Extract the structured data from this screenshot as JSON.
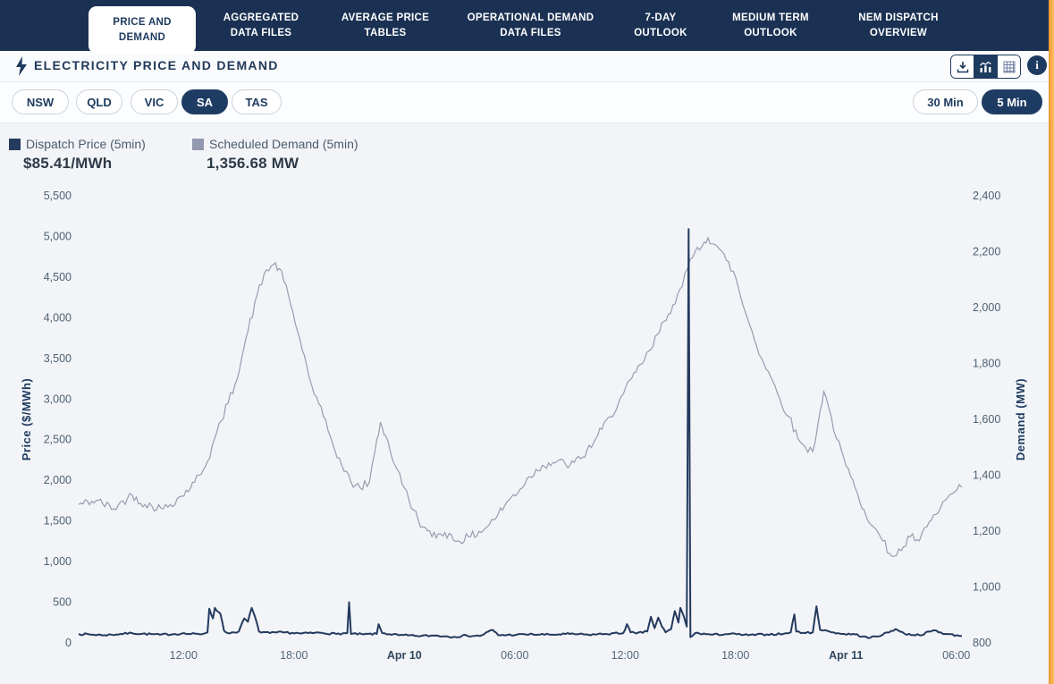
{
  "tabs": [
    {
      "line1": "PRICE AND",
      "line2": "DEMAND",
      "active": true
    },
    {
      "line1": "AGGREGATED",
      "line2": "DATA FILES",
      "active": false
    },
    {
      "line1": "AVERAGE PRICE",
      "line2": "TABLES",
      "active": false
    },
    {
      "line1": "OPERATIONAL DEMAND",
      "line2": "DATA FILES",
      "active": false
    },
    {
      "line1": "7-DAY",
      "line2": "OUTLOOK",
      "active": false
    },
    {
      "line1": "MEDIUM TERM",
      "line2": "OUTLOOK",
      "active": false
    },
    {
      "line1": "NEM DISPATCH",
      "line2": "OVERVIEW",
      "active": false
    }
  ],
  "header": {
    "title": "ELECTRICITY PRICE AND DEMAND",
    "toolbar": [
      "download",
      "chart",
      "table"
    ],
    "toolbar_selected": "chart",
    "info_label": "i"
  },
  "regions": [
    {
      "label": "NSW",
      "selected": false
    },
    {
      "label": "QLD",
      "selected": false
    },
    {
      "label": "VIC",
      "selected": false
    },
    {
      "label": "SA",
      "selected": true
    },
    {
      "label": "TAS",
      "selected": false
    }
  ],
  "intervals": [
    {
      "label": "30 Min",
      "selected": false
    },
    {
      "label": "5 Min",
      "selected": true
    }
  ],
  "legend": {
    "price": {
      "label": "Dispatch Price (5min)",
      "value": "$85.41/MWh",
      "color": "#243a5e"
    },
    "demand": {
      "label": "Scheduled Demand (5min)",
      "value": "1,356.68 MW",
      "color": "#9298ad"
    }
  },
  "colors": {
    "topbar": "#1b3153",
    "accent_navy": "#1d3a5f",
    "price_line": "#243a5e",
    "demand_line": "#989cb0",
    "page_bg": "#f2f4f7",
    "scroll_strip": "#f4a93f"
  },
  "chart_data": {
    "type": "line",
    "title": "",
    "x_axis": {
      "unit": "hours since Apr 9 00:00",
      "range": [
        6.3,
        54.5
      ],
      "ticks": [
        {
          "t": 12,
          "label": "12:00",
          "bold": false
        },
        {
          "t": 18,
          "label": "18:00",
          "bold": false
        },
        {
          "t": 24,
          "label": "Apr 10",
          "bold": true
        },
        {
          "t": 30,
          "label": "06:00",
          "bold": false
        },
        {
          "t": 36,
          "label": "12:00",
          "bold": false
        },
        {
          "t": 42,
          "label": "18:00",
          "bold": false
        },
        {
          "t": 48,
          "label": "Apr 11",
          "bold": true
        },
        {
          "t": 54,
          "label": "06:00",
          "bold": false
        }
      ]
    },
    "price_axis": {
      "label": "Price ($/MWh)",
      "range": [
        0,
        5500
      ],
      "tick_step": 500
    },
    "demand_axis": {
      "label": "Demand (MW)",
      "range": [
        800,
        2400
      ],
      "tick_step": 200
    },
    "grid": false,
    "legend_position": "top-left",
    "series": [
      {
        "name": "Dispatch Price (5min)",
        "axis": "price",
        "color": "#243a5e",
        "width": 2,
        "points": [
          [
            6.3,
            110
          ],
          [
            7.7,
            95
          ],
          [
            9.2,
            120
          ],
          [
            10.7,
            100
          ],
          [
            11.9,
            115
          ],
          [
            12.9,
            105
          ],
          [
            13.3,
            130
          ],
          [
            13.4,
            420
          ],
          [
            13.6,
            300
          ],
          [
            13.7,
            430
          ],
          [
            13.9,
            380
          ],
          [
            14.0,
            360
          ],
          [
            14.2,
            150
          ],
          [
            14.4,
            120
          ],
          [
            15.0,
            140
          ],
          [
            15.3,
            300
          ],
          [
            15.5,
            260
          ],
          [
            15.7,
            430
          ],
          [
            15.9,
            310
          ],
          [
            16.1,
            140
          ],
          [
            16.7,
            120
          ],
          [
            17.4,
            130
          ],
          [
            18.4,
            115
          ],
          [
            19.4,
            125
          ],
          [
            20.3,
            110
          ],
          [
            20.9,
            120
          ],
          [
            21.0,
            500
          ],
          [
            21.1,
            110
          ],
          [
            21.8,
            105
          ],
          [
            22.5,
            110
          ],
          [
            22.6,
            230
          ],
          [
            22.8,
            120
          ],
          [
            23.7,
            95
          ],
          [
            24.7,
            85
          ],
          [
            25.7,
            90
          ],
          [
            26.7,
            75
          ],
          [
            27.4,
            90
          ],
          [
            28.1,
            85
          ],
          [
            28.8,
            160
          ],
          [
            29.1,
            95
          ],
          [
            30.1,
            100
          ],
          [
            31.0,
            105
          ],
          [
            32.0,
            100
          ],
          [
            33.0,
            110
          ],
          [
            34.0,
            100
          ],
          [
            34.9,
            110
          ],
          [
            35.9,
            120
          ],
          [
            36.1,
            230
          ],
          [
            36.3,
            130
          ],
          [
            36.6,
            115
          ],
          [
            37.2,
            140
          ],
          [
            37.4,
            320
          ],
          [
            37.6,
            180
          ],
          [
            37.8,
            310
          ],
          [
            38.0,
            200
          ],
          [
            38.2,
            130
          ],
          [
            38.5,
            170
          ],
          [
            38.7,
            390
          ],
          [
            38.9,
            250
          ],
          [
            39.0,
            430
          ],
          [
            39.2,
            320
          ],
          [
            39.35,
            200
          ],
          [
            39.45,
            5090
          ],
          [
            39.55,
            70
          ],
          [
            39.8,
            120
          ],
          [
            40.75,
            100
          ],
          [
            41.7,
            110
          ],
          [
            42.7,
            95
          ],
          [
            43.7,
            105
          ],
          [
            44.6,
            110
          ],
          [
            45.0,
            130
          ],
          [
            45.2,
            350
          ],
          [
            45.3,
            140
          ],
          [
            45.8,
            120
          ],
          [
            46.2,
            130
          ],
          [
            46.4,
            450
          ],
          [
            46.6,
            160
          ],
          [
            47.1,
            140
          ],
          [
            47.8,
            110
          ],
          [
            48.5,
            105
          ],
          [
            49.2,
            60
          ],
          [
            50.0,
            100
          ],
          [
            50.7,
            170
          ],
          [
            51.2,
            110
          ],
          [
            52.0,
            95
          ],
          [
            52.8,
            155
          ],
          [
            53.4,
            110
          ],
          [
            54.3,
            85.41
          ]
        ]
      },
      {
        "name": "Scheduled Demand (5min)",
        "axis": "demand",
        "color": "#989cb0",
        "width": 1.2,
        "points": [
          [
            6.3,
            1295
          ],
          [
            7.25,
            1310
          ],
          [
            8.2,
            1280
          ],
          [
            9.2,
            1330
          ],
          [
            9.9,
            1295
          ],
          [
            10.9,
            1280
          ],
          [
            11.9,
            1325
          ],
          [
            12.6,
            1375
          ],
          [
            13.3,
            1450
          ],
          [
            14.05,
            1595
          ],
          [
            14.8,
            1725
          ],
          [
            15.5,
            1915
          ],
          [
            16.0,
            2045
          ],
          [
            16.5,
            2135
          ],
          [
            16.9,
            2155
          ],
          [
            17.2,
            2140
          ],
          [
            17.7,
            2045
          ],
          [
            18.2,
            1915
          ],
          [
            18.7,
            1790
          ],
          [
            19.1,
            1690
          ],
          [
            19.6,
            1610
          ],
          [
            20.1,
            1515
          ],
          [
            20.6,
            1435
          ],
          [
            21.1,
            1375
          ],
          [
            21.6,
            1355
          ],
          [
            22.1,
            1375
          ],
          [
            22.4,
            1485
          ],
          [
            22.7,
            1590
          ],
          [
            23.0,
            1540
          ],
          [
            23.5,
            1435
          ],
          [
            24.0,
            1355
          ],
          [
            24.5,
            1275
          ],
          [
            25.0,
            1215
          ],
          [
            25.5,
            1180
          ],
          [
            26.2,
            1195
          ],
          [
            26.9,
            1165
          ],
          [
            27.6,
            1180
          ],
          [
            28.4,
            1210
          ],
          [
            29.1,
            1260
          ],
          [
            29.8,
            1320
          ],
          [
            30.3,
            1350
          ],
          [
            30.8,
            1395
          ],
          [
            31.5,
            1435
          ],
          [
            32.3,
            1450
          ],
          [
            33.0,
            1435
          ],
          [
            33.7,
            1465
          ],
          [
            34.4,
            1530
          ],
          [
            35.2,
            1610
          ],
          [
            35.9,
            1690
          ],
          [
            36.6,
            1770
          ],
          [
            37.4,
            1850
          ],
          [
            38.1,
            1950
          ],
          [
            38.6,
            2010
          ],
          [
            39.1,
            2075
          ],
          [
            39.4,
            2140
          ],
          [
            39.8,
            2200
          ],
          [
            40.3,
            2235
          ],
          [
            40.5,
            2250
          ],
          [
            41.0,
            2220
          ],
          [
            41.5,
            2170
          ],
          [
            42.0,
            2110
          ],
          [
            42.4,
            2010
          ],
          [
            42.9,
            1915
          ],
          [
            43.4,
            1820
          ],
          [
            43.9,
            1755
          ],
          [
            44.4,
            1675
          ],
          [
            44.9,
            1610
          ],
          [
            45.4,
            1530
          ],
          [
            45.8,
            1500
          ],
          [
            46.2,
            1485
          ],
          [
            46.6,
            1630
          ],
          [
            46.8,
            1700
          ],
          [
            47.2,
            1610
          ],
          [
            47.5,
            1530
          ],
          [
            48.0,
            1435
          ],
          [
            48.5,
            1355
          ],
          [
            49.0,
            1275
          ],
          [
            49.5,
            1215
          ],
          [
            50.0,
            1165
          ],
          [
            50.5,
            1110
          ],
          [
            51.0,
            1130
          ],
          [
            51.5,
            1180
          ],
          [
            52.0,
            1165
          ],
          [
            52.4,
            1215
          ],
          [
            52.9,
            1260
          ],
          [
            53.4,
            1310
          ],
          [
            53.9,
            1340
          ],
          [
            54.3,
            1357
          ]
        ]
      }
    ]
  }
}
